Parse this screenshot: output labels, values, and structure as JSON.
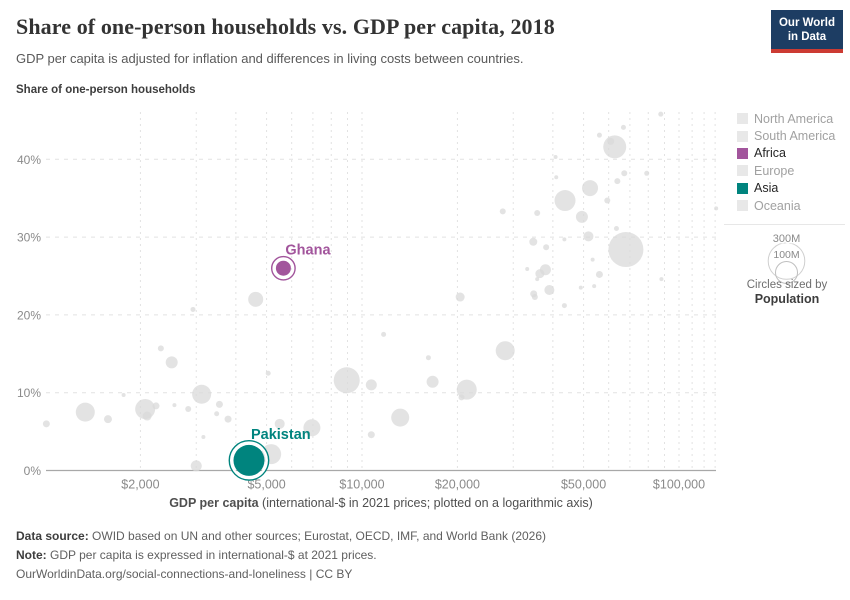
{
  "colors": {
    "africa": "#a2559c",
    "asia": "#00847e",
    "inactive_point": "#d9d9d9",
    "inactive_legend_swatch": "#e8e8e8",
    "inactive_legend_text": "#a1a1a1",
    "active_legend_text": "#262626",
    "gridline": "#e2e2e2",
    "axis_line": "#a8a8a8",
    "tick_label": "#8a8a8a",
    "logo_navy": "#1d3d63",
    "logo_red": "#cc3b33"
  },
  "header": {
    "logo_line1": "Our World",
    "logo_line2": "in Data"
  },
  "chart_data": {
    "type": "scatter",
    "title": "Share of one-person households vs. GDP per capita, 2018",
    "subtitle": "GDP per capita is adjusted for inflation and differences in living costs between countries.",
    "ylabel": "Share of one-person households",
    "xlabel_bold": "GDP per capita",
    "xlabel_rest": " (international-$ in 2021 prices; plotted on a logarithmic axis)",
    "x_scale": "log",
    "xlim": [
      1000,
      131000
    ],
    "ylim": [
      0,
      46
    ],
    "grid": true,
    "x_ticks": [
      {
        "value": 2000,
        "label": "$2,000"
      },
      {
        "value": 5000,
        "label": "$5,000"
      },
      {
        "value": 10000,
        "label": "$10,000"
      },
      {
        "value": 20000,
        "label": "$20,000"
      },
      {
        "value": 50000,
        "label": "$50,000"
      },
      {
        "value": 100000,
        "label": "$100,000"
      }
    ],
    "x_minor_gridlines": [
      2000,
      3000,
      4000,
      5000,
      6000,
      7000,
      8000,
      9000,
      10000,
      20000,
      30000,
      40000,
      50000,
      60000,
      70000,
      80000,
      90000,
      100000,
      110000,
      120000,
      130000
    ],
    "y_ticks": [
      {
        "value": 0,
        "label": "0%"
      },
      {
        "value": 10,
        "label": "10%"
      },
      {
        "value": 20,
        "label": "20%"
      },
      {
        "value": 30,
        "label": "30%"
      },
      {
        "value": 40,
        "label": "40%"
      }
    ],
    "points_format": "[gdp_international_dollars, share_percent, radius_px]",
    "points": [
      [
        1010,
        6.0,
        3.5
      ],
      [
        1340,
        7.5,
        9.5
      ],
      [
        1580,
        6.6,
        4
      ],
      [
        1770,
        9.7,
        2
      ],
      [
        2070,
        7.9,
        10
      ],
      [
        2100,
        7.0,
        4.5
      ],
      [
        2240,
        8.3,
        3.5
      ],
      [
        2560,
        8.4,
        2
      ],
      [
        2830,
        7.9,
        3
      ],
      [
        3120,
        9.8,
        9.5
      ],
      [
        3160,
        4.3,
        2
      ],
      [
        3000,
        0.6,
        5.5
      ],
      [
        2930,
        20.7,
        2.5
      ],
      [
        2320,
        15.7,
        3
      ],
      [
        2510,
        13.9,
        6
      ],
      [
        3480,
        7.3,
        2.5
      ],
      [
        3550,
        8.5,
        3.5
      ],
      [
        3780,
        6.6,
        3.5
      ],
      [
        4620,
        22.0,
        7.5
      ],
      [
        5060,
        12.5,
        2.5
      ],
      [
        5170,
        2.1,
        10
      ],
      [
        5500,
        6.0,
        5
      ],
      [
        6950,
        5.5,
        8.5
      ],
      [
        8950,
        11.6,
        13
      ],
      [
        10700,
        11.0,
        5.5
      ],
      [
        10700,
        4.6,
        3.5
      ],
      [
        11700,
        17.5,
        2.5
      ],
      [
        13200,
        6.8,
        9
      ],
      [
        16200,
        14.5,
        2.5
      ],
      [
        16700,
        11.4,
        6
      ],
      [
        20600,
        9.4,
        3
      ],
      [
        21400,
        10.4,
        10
      ],
      [
        20400,
        22.3,
        4.5
      ],
      [
        28300,
        15.4,
        9.5
      ],
      [
        27800,
        33.3,
        3
      ],
      [
        33200,
        25.9,
        2
      ],
      [
        34700,
        29.4,
        4
      ],
      [
        34800,
        22.7,
        3.5
      ],
      [
        35100,
        22.3,
        3
      ],
      [
        35700,
        24.6,
        2
      ],
      [
        35700,
        33.1,
        3
      ],
      [
        36400,
        25.3,
        4.5
      ],
      [
        37900,
        25.8,
        5.5
      ],
      [
        38100,
        28.7,
        3
      ],
      [
        39000,
        23.2,
        5
      ],
      [
        40800,
        40.3,
        2
      ],
      [
        41000,
        37.7,
        2
      ],
      [
        43500,
        21.2,
        2.5
      ],
      [
        43500,
        29.7,
        2
      ],
      [
        43700,
        34.7,
        10.5
      ],
      [
        49000,
        23.5,
        2
      ],
      [
        49400,
        32.6,
        6
      ],
      [
        51800,
        30.1,
        5
      ],
      [
        52400,
        36.3,
        8
      ],
      [
        53400,
        27.1,
        2
      ],
      [
        54000,
        23.7,
        2
      ],
      [
        56100,
        25.2,
        3.5
      ],
      [
        56100,
        43.1,
        2.5
      ],
      [
        59400,
        34.7,
        3
      ],
      [
        60900,
        42.3,
        3.5
      ],
      [
        62700,
        41.6,
        11.5
      ],
      [
        63500,
        31.1,
        2.5
      ],
      [
        63900,
        37.2,
        3
      ],
      [
        66800,
        44.1,
        2.5
      ],
      [
        67200,
        38.2,
        3
      ],
      [
        68000,
        28.4,
        17.5
      ],
      [
        79100,
        38.2,
        2.5
      ],
      [
        87600,
        45.8,
        2.5
      ],
      [
        88000,
        24.6,
        2
      ],
      [
        131000,
        33.7,
        2
      ]
    ],
    "highlighted": [
      {
        "name": "Ghana",
        "gdp": 5650,
        "share": 26.0,
        "r": 7.5,
        "color": "#a2559c"
      },
      {
        "name": "Pakistan",
        "gdp": 4400,
        "share": 1.3,
        "r": 15.5,
        "color": "#00847e"
      }
    ]
  },
  "legend": {
    "items": [
      {
        "label": "North America",
        "active": false
      },
      {
        "label": "South America",
        "active": false
      },
      {
        "label": "Africa",
        "active": true,
        "color": "#a2559c"
      },
      {
        "label": "Europe",
        "active": false
      },
      {
        "label": "Asia",
        "active": true,
        "color": "#00847e"
      },
      {
        "label": "Oceania",
        "active": false
      }
    ],
    "size": {
      "big_label": "300M",
      "small_label": "100M",
      "caption_line1": "Circles sized by",
      "caption_line2": "Population"
    }
  },
  "footer": {
    "datasource_label": "Data source:",
    "datasource_text": " OWID based on UN and other sources; Eurostat, OECD, IMF, and World Bank (2026)",
    "note_label": "Note:",
    "note_text": " GDP per capita is expressed in international-$ at 2021 prices.",
    "link_url": "OurWorldinData.org/social-connections-and-loneliness",
    "link_suffix": " | CC BY"
  }
}
